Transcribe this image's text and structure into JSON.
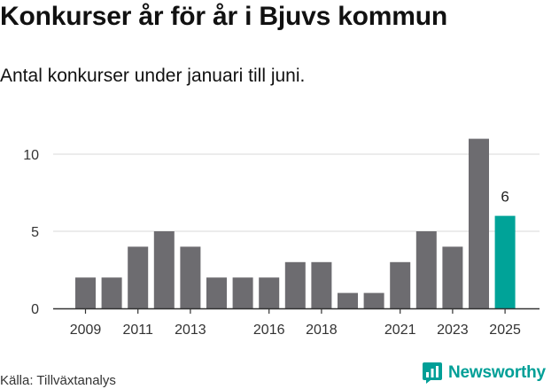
{
  "header": {
    "title": "Konkurser år för år i Bjuvs kommun",
    "subtitle": "Antal konkurser under januari till juni."
  },
  "footer": {
    "source": "Källa: Tillväxtanalys",
    "brand": "Newsworthy",
    "brand_icon": "newsworthy-logo-icon"
  },
  "colors": {
    "bar": "#6d6c70",
    "highlight": "#00a398",
    "grid": "#d9d9d9",
    "axis": "#333333",
    "brand": "#009f97"
  },
  "chart_data": {
    "type": "bar",
    "title": "Konkurser år för år i Bjuvs kommun",
    "subtitle": "Antal konkurser under januari till juni.",
    "x": [
      2009,
      2010,
      2011,
      2012,
      2013,
      2014,
      2015,
      2016,
      2017,
      2018,
      2019,
      2020,
      2021,
      2022,
      2023,
      2024,
      2025
    ],
    "values": [
      2,
      2,
      4,
      5,
      4,
      2,
      2,
      2,
      3,
      3,
      1,
      1,
      3,
      5,
      4,
      11,
      6
    ],
    "x_tick_labels": [
      "2009",
      "2011",
      "2013",
      "2016",
      "2018",
      "2021",
      "2023",
      "2025"
    ],
    "y_ticks": [
      0,
      5,
      10
    ],
    "ylim": [
      0,
      11
    ],
    "grid": true,
    "legend": "none",
    "highlight": {
      "x": 2025,
      "label": "6"
    }
  }
}
